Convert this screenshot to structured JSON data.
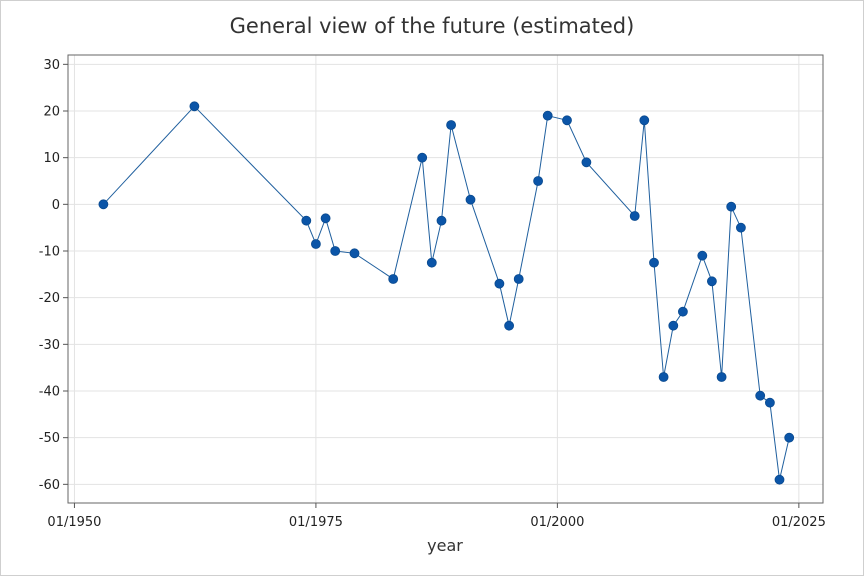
{
  "chart_data": {
    "type": "line",
    "title": "General view of the future (estimated)",
    "xlabel": "year",
    "ylabel": "",
    "x_axis": "date",
    "x_ticks": [
      "01/1950",
      "01/1975",
      "01/2000",
      "01/2025"
    ],
    "y_ticks": [
      30,
      20,
      10,
      0,
      -10,
      -20,
      -30,
      -40,
      -50,
      -60
    ],
    "ylim": [
      -64,
      32
    ],
    "xlim": [
      "1949-05",
      "2027-07"
    ],
    "grid": true,
    "colors": {
      "line": "#1f5f9e",
      "marker": "#0b55a8",
      "grid": "#e3e3e3"
    },
    "series": [
      {
        "x": [
          "1953-01",
          "1962-06",
          "1974-01",
          "1975-01",
          "1976-01",
          "1977-01",
          "1979-01",
          "1983-01",
          "1986-01",
          "1987-01",
          "1988-01",
          "1989-01",
          "1991-01",
          "1994-01",
          "1995-01",
          "1996-01",
          "1998-01",
          "1999-01",
          "2001-01",
          "2003-01",
          "2008-01",
          "2009-01",
          "2010-01",
          "2011-01",
          "2012-01",
          "2013-01",
          "2015-01",
          "2016-01",
          "2017-01",
          "2018-01",
          "2019-01",
          "2021-01",
          "2022-01",
          "2023-01",
          "2024-01"
        ],
        "y": [
          0,
          21,
          -3.5,
          -8.5,
          -3,
          -10,
          -10.5,
          -16,
          10,
          -12.5,
          -3.5,
          17,
          1,
          -17,
          -26,
          -16,
          5,
          19,
          18,
          9,
          -2.5,
          18,
          -12.5,
          -37,
          -26,
          -23,
          -11,
          -16.5,
          -37,
          -0.5,
          -5,
          -41,
          -42.5,
          -59,
          -50
        ]
      }
    ]
  }
}
